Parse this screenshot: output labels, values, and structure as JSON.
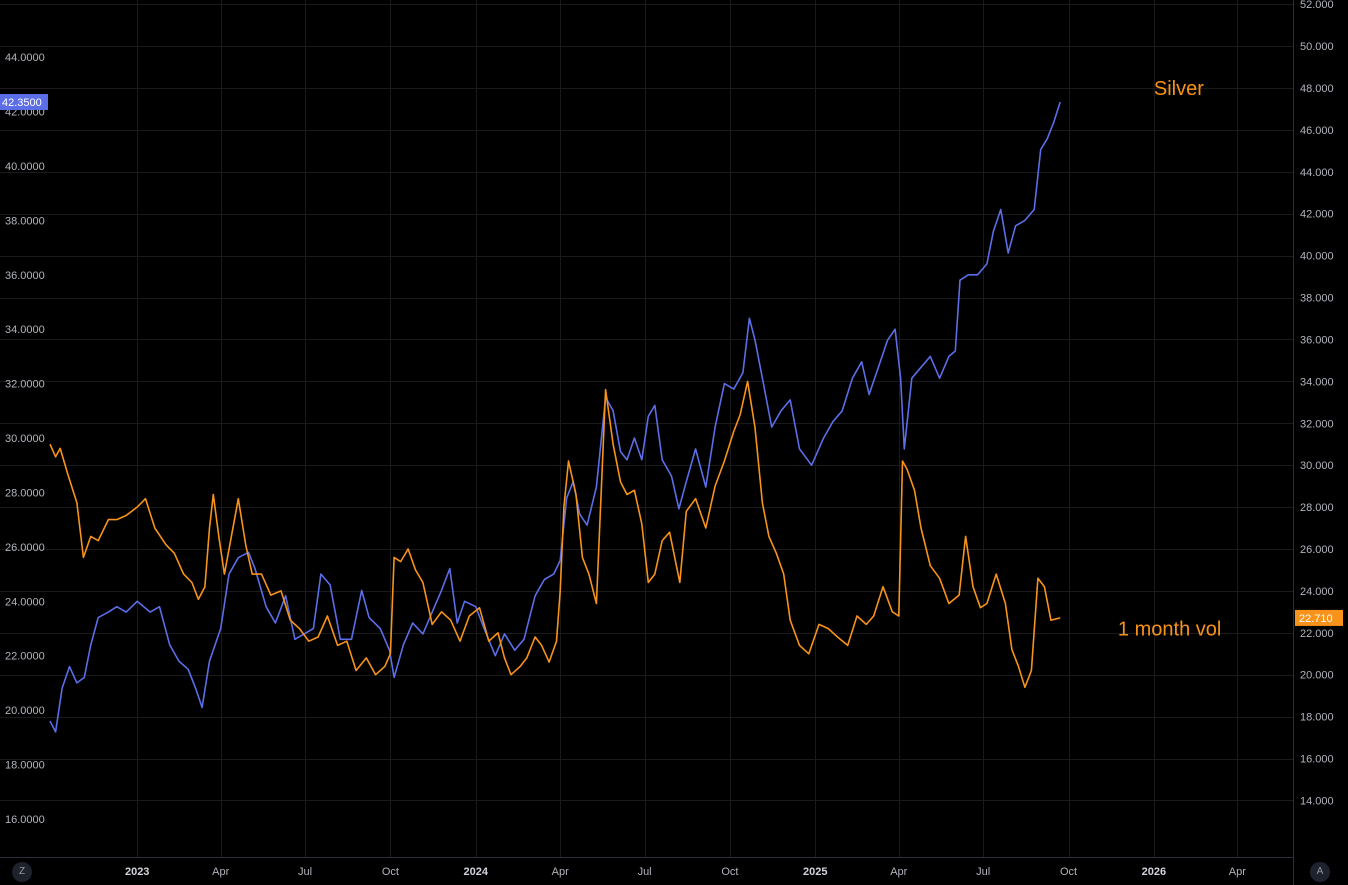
{
  "chart_data": {
    "type": "line",
    "left_axis": {
      "ticks": [
        "16.0000",
        "18.0000",
        "20.0000",
        "22.0000",
        "24.0000",
        "26.0000",
        "28.0000",
        "30.0000",
        "32.0000",
        "34.0000",
        "36.0000",
        "38.0000",
        "40.0000",
        "42.0000",
        "44.0000"
      ],
      "range": [
        14.6,
        46.1
      ]
    },
    "right_axis": {
      "ticks": [
        "14.000",
        "16.000",
        "18.000",
        "20.000",
        "22.000",
        "24.000",
        "26.000",
        "28.000",
        "30.000",
        "32.000",
        "34.000",
        "36.000",
        "38.000",
        "40.000",
        "42.000",
        "44.000",
        "46.000",
        "48.000",
        "50.000",
        "52.000"
      ],
      "range": [
        11.3,
        52.2
      ]
    },
    "x_axis": {
      "range": [
        "2022-09-29",
        "2026-05-31"
      ],
      "ticks": [
        {
          "date": "2023-01-01",
          "label": "2023",
          "year": true
        },
        {
          "date": "2023-04-01",
          "label": "Apr"
        },
        {
          "date": "2023-07-01",
          "label": "Jul"
        },
        {
          "date": "2023-10-01",
          "label": "Oct"
        },
        {
          "date": "2024-01-01",
          "label": "2024",
          "year": true
        },
        {
          "date": "2024-04-01",
          "label": "Apr"
        },
        {
          "date": "2024-07-01",
          "label": "Jul"
        },
        {
          "date": "2024-10-01",
          "label": "Oct"
        },
        {
          "date": "2025-01-01",
          "label": "2025",
          "year": true
        },
        {
          "date": "2025-04-01",
          "label": "Apr"
        },
        {
          "date": "2025-07-01",
          "label": "Jul"
        },
        {
          "date": "2025-10-01",
          "label": "Oct"
        },
        {
          "date": "2026-01-01",
          "label": "2026",
          "year": true
        },
        {
          "date": "2026-04-01",
          "label": "Apr"
        }
      ]
    },
    "grid": true,
    "series": [
      {
        "name": "Silver",
        "axis": "left",
        "color": "#5b6ee8",
        "last_value": "42.3500",
        "points": [
          [
            "2022-09-29",
            19.6
          ],
          [
            "2022-10-05",
            19.2
          ],
          [
            "2022-10-12",
            20.8
          ],
          [
            "2022-10-20",
            21.6
          ],
          [
            "2022-10-28",
            21.0
          ],
          [
            "2022-11-05",
            21.2
          ],
          [
            "2022-11-12",
            22.4
          ],
          [
            "2022-11-20",
            23.4
          ],
          [
            "2022-12-01",
            23.6
          ],
          [
            "2022-12-10",
            23.8
          ],
          [
            "2022-12-20",
            23.6
          ],
          [
            "2023-01-01",
            24.0
          ],
          [
            "2023-01-15",
            23.6
          ],
          [
            "2023-01-25",
            23.8
          ],
          [
            "2023-02-05",
            22.4
          ],
          [
            "2023-02-15",
            21.8
          ],
          [
            "2023-02-25",
            21.5
          ],
          [
            "2023-03-05",
            20.8
          ],
          [
            "2023-03-12",
            20.1
          ],
          [
            "2023-03-20",
            21.8
          ],
          [
            "2023-04-01",
            23.0
          ],
          [
            "2023-04-10",
            25.0
          ],
          [
            "2023-04-20",
            25.6
          ],
          [
            "2023-05-01",
            25.8
          ],
          [
            "2023-05-08",
            25.2
          ],
          [
            "2023-05-20",
            23.8
          ],
          [
            "2023-05-30",
            23.2
          ],
          [
            "2023-06-10",
            24.2
          ],
          [
            "2023-06-20",
            22.6
          ],
          [
            "2023-06-30",
            22.8
          ],
          [
            "2023-07-10",
            23.0
          ],
          [
            "2023-07-18",
            25.0
          ],
          [
            "2023-07-28",
            24.6
          ],
          [
            "2023-08-08",
            22.6
          ],
          [
            "2023-08-20",
            22.6
          ],
          [
            "2023-08-31",
            24.4
          ],
          [
            "2023-09-08",
            23.4
          ],
          [
            "2023-09-20",
            23.0
          ],
          [
            "2023-09-30",
            22.2
          ],
          [
            "2023-10-05",
            21.2
          ],
          [
            "2023-10-15",
            22.4
          ],
          [
            "2023-10-25",
            23.2
          ],
          [
            "2023-11-05",
            22.8
          ],
          [
            "2023-11-15",
            23.6
          ],
          [
            "2023-11-25",
            24.4
          ],
          [
            "2023-12-04",
            25.2
          ],
          [
            "2023-12-12",
            23.2
          ],
          [
            "2023-12-20",
            24.0
          ],
          [
            "2024-01-01",
            23.8
          ],
          [
            "2024-01-10",
            23.0
          ],
          [
            "2024-01-22",
            22.0
          ],
          [
            "2024-02-01",
            22.8
          ],
          [
            "2024-02-12",
            22.2
          ],
          [
            "2024-02-22",
            22.6
          ],
          [
            "2024-03-05",
            24.2
          ],
          [
            "2024-03-15",
            24.8
          ],
          [
            "2024-03-25",
            25.0
          ],
          [
            "2024-04-01",
            25.5
          ],
          [
            "2024-04-08",
            27.8
          ],
          [
            "2024-04-15",
            28.4
          ],
          [
            "2024-04-22",
            27.2
          ],
          [
            "2024-04-30",
            26.8
          ],
          [
            "2024-05-10",
            28.2
          ],
          [
            "2024-05-20",
            31.5
          ],
          [
            "2024-05-28",
            31.0
          ],
          [
            "2024-06-05",
            29.5
          ],
          [
            "2024-06-12",
            29.2
          ],
          [
            "2024-06-20",
            30.0
          ],
          [
            "2024-06-28",
            29.2
          ],
          [
            "2024-07-05",
            30.8
          ],
          [
            "2024-07-12",
            31.2
          ],
          [
            "2024-07-20",
            29.2
          ],
          [
            "2024-07-30",
            28.6
          ],
          [
            "2024-08-07",
            27.4
          ],
          [
            "2024-08-15",
            28.4
          ],
          [
            "2024-08-25",
            29.6
          ],
          [
            "2024-09-05",
            28.2
          ],
          [
            "2024-09-15",
            30.4
          ],
          [
            "2024-09-25",
            32.0
          ],
          [
            "2024-10-05",
            31.8
          ],
          [
            "2024-10-15",
            32.4
          ],
          [
            "2024-10-22",
            34.4
          ],
          [
            "2024-10-28",
            33.6
          ],
          [
            "2024-11-05",
            32.2
          ],
          [
            "2024-11-15",
            30.4
          ],
          [
            "2024-11-25",
            31.0
          ],
          [
            "2024-12-05",
            31.4
          ],
          [
            "2024-12-15",
            29.6
          ],
          [
            "2024-12-28",
            29.0
          ],
          [
            "2025-01-10",
            30.0
          ],
          [
            "2025-01-20",
            30.6
          ],
          [
            "2025-01-30",
            31.0
          ],
          [
            "2025-02-10",
            32.2
          ],
          [
            "2025-02-20",
            32.8
          ],
          [
            "2025-02-28",
            31.6
          ],
          [
            "2025-03-10",
            32.6
          ],
          [
            "2025-03-20",
            33.6
          ],
          [
            "2025-03-28",
            34.0
          ],
          [
            "2025-04-03",
            32.2
          ],
          [
            "2025-04-07",
            29.6
          ],
          [
            "2025-04-15",
            32.2
          ],
          [
            "2025-04-25",
            32.6
          ],
          [
            "2025-05-05",
            33.0
          ],
          [
            "2025-05-15",
            32.2
          ],
          [
            "2025-05-25",
            33.0
          ],
          [
            "2025-06-01",
            33.2
          ],
          [
            "2025-06-06",
            35.8
          ],
          [
            "2025-06-15",
            36.0
          ],
          [
            "2025-06-25",
            36.0
          ],
          [
            "2025-07-05",
            36.4
          ],
          [
            "2025-07-12",
            37.6
          ],
          [
            "2025-07-20",
            38.4
          ],
          [
            "2025-07-28",
            36.8
          ],
          [
            "2025-08-05",
            37.8
          ],
          [
            "2025-08-15",
            38.0
          ],
          [
            "2025-08-25",
            38.4
          ],
          [
            "2025-09-01",
            40.6
          ],
          [
            "2025-09-08",
            41.0
          ],
          [
            "2025-09-15",
            41.6
          ],
          [
            "2025-09-22",
            42.35
          ]
        ]
      },
      {
        "name": "1 month vol",
        "axis": "right",
        "color": "#f7931a",
        "last_value": "22.710",
        "points": [
          [
            "2022-09-29",
            31.0
          ],
          [
            "2022-10-05",
            30.4
          ],
          [
            "2022-10-10",
            30.8
          ],
          [
            "2022-10-18",
            29.6
          ],
          [
            "2022-10-28",
            28.2
          ],
          [
            "2022-11-04",
            25.6
          ],
          [
            "2022-11-12",
            26.6
          ],
          [
            "2022-11-20",
            26.4
          ],
          [
            "2022-12-01",
            27.4
          ],
          [
            "2022-12-10",
            27.4
          ],
          [
            "2022-12-20",
            27.6
          ],
          [
            "2023-01-01",
            28.0
          ],
          [
            "2023-01-10",
            28.4
          ],
          [
            "2023-01-20",
            27.0
          ],
          [
            "2023-02-01",
            26.2
          ],
          [
            "2023-02-10",
            25.8
          ],
          [
            "2023-02-20",
            24.8
          ],
          [
            "2023-03-01",
            24.4
          ],
          [
            "2023-03-08",
            23.6
          ],
          [
            "2023-03-15",
            24.2
          ],
          [
            "2023-03-20",
            27.0
          ],
          [
            "2023-03-24",
            28.6
          ],
          [
            "2023-03-30",
            26.6
          ],
          [
            "2023-04-05",
            24.8
          ],
          [
            "2023-04-15",
            27.2
          ],
          [
            "2023-04-20",
            28.4
          ],
          [
            "2023-04-28",
            26.2
          ],
          [
            "2023-05-05",
            24.8
          ],
          [
            "2023-05-15",
            24.8
          ],
          [
            "2023-05-25",
            23.8
          ],
          [
            "2023-06-05",
            24.0
          ],
          [
            "2023-06-15",
            22.6
          ],
          [
            "2023-06-25",
            22.2
          ],
          [
            "2023-07-05",
            21.6
          ],
          [
            "2023-07-15",
            21.8
          ],
          [
            "2023-07-25",
            22.8
          ],
          [
            "2023-08-05",
            21.4
          ],
          [
            "2023-08-15",
            21.6
          ],
          [
            "2023-08-25",
            20.2
          ],
          [
            "2023-09-05",
            20.8
          ],
          [
            "2023-09-15",
            20.0
          ],
          [
            "2023-09-25",
            20.4
          ],
          [
            "2023-10-01",
            21.0
          ],
          [
            "2023-10-05",
            25.6
          ],
          [
            "2023-10-12",
            25.4
          ],
          [
            "2023-10-20",
            26.0
          ],
          [
            "2023-10-28",
            25.0
          ],
          [
            "2023-11-05",
            24.4
          ],
          [
            "2023-11-15",
            22.4
          ],
          [
            "2023-11-25",
            23.0
          ],
          [
            "2023-12-05",
            22.6
          ],
          [
            "2023-12-15",
            21.6
          ],
          [
            "2023-12-25",
            22.8
          ],
          [
            "2024-01-05",
            23.2
          ],
          [
            "2024-01-15",
            21.6
          ],
          [
            "2024-01-25",
            22.0
          ],
          [
            "2024-02-01",
            20.8
          ],
          [
            "2024-02-08",
            20.0
          ],
          [
            "2024-02-18",
            20.4
          ],
          [
            "2024-02-25",
            20.8
          ],
          [
            "2024-03-05",
            21.8
          ],
          [
            "2024-03-12",
            21.4
          ],
          [
            "2024-03-20",
            20.6
          ],
          [
            "2024-03-28",
            21.6
          ],
          [
            "2024-04-01",
            24.0
          ],
          [
            "2024-04-05",
            28.0
          ],
          [
            "2024-04-10",
            30.2
          ],
          [
            "2024-04-18",
            28.6
          ],
          [
            "2024-04-25",
            25.6
          ],
          [
            "2024-05-02",
            24.8
          ],
          [
            "2024-05-10",
            23.4
          ],
          [
            "2024-05-20",
            33.6
          ],
          [
            "2024-05-28",
            31.0
          ],
          [
            "2024-06-05",
            29.2
          ],
          [
            "2024-06-12",
            28.6
          ],
          [
            "2024-06-20",
            28.8
          ],
          [
            "2024-06-28",
            27.2
          ],
          [
            "2024-07-05",
            24.4
          ],
          [
            "2024-07-12",
            24.8
          ],
          [
            "2024-07-20",
            26.4
          ],
          [
            "2024-07-28",
            26.8
          ],
          [
            "2024-08-08",
            24.4
          ],
          [
            "2024-08-15",
            27.8
          ],
          [
            "2024-08-25",
            28.4
          ],
          [
            "2024-09-05",
            27.0
          ],
          [
            "2024-09-15",
            29.0
          ],
          [
            "2024-09-25",
            30.2
          ],
          [
            "2024-10-05",
            31.6
          ],
          [
            "2024-10-12",
            32.4
          ],
          [
            "2024-10-20",
            34.0
          ],
          [
            "2024-10-28",
            31.8
          ],
          [
            "2024-11-05",
            28.2
          ],
          [
            "2024-11-12",
            26.6
          ],
          [
            "2024-11-20",
            25.8
          ],
          [
            "2024-11-28",
            24.8
          ],
          [
            "2024-12-05",
            22.6
          ],
          [
            "2024-12-15",
            21.4
          ],
          [
            "2024-12-25",
            21.0
          ],
          [
            "2025-01-05",
            22.4
          ],
          [
            "2025-01-15",
            22.2
          ],
          [
            "2025-01-25",
            21.8
          ],
          [
            "2025-02-05",
            21.4
          ],
          [
            "2025-02-15",
            22.8
          ],
          [
            "2025-02-25",
            22.4
          ],
          [
            "2025-03-05",
            22.8
          ],
          [
            "2025-03-15",
            24.2
          ],
          [
            "2025-03-25",
            23.0
          ],
          [
            "2025-04-01",
            22.8
          ],
          [
            "2025-04-05",
            30.2
          ],
          [
            "2025-04-10",
            29.8
          ],
          [
            "2025-04-18",
            28.8
          ],
          [
            "2025-04-25",
            27.0
          ],
          [
            "2025-05-05",
            25.2
          ],
          [
            "2025-05-15",
            24.6
          ],
          [
            "2025-05-25",
            23.4
          ],
          [
            "2025-06-05",
            23.8
          ],
          [
            "2025-06-12",
            26.6
          ],
          [
            "2025-06-20",
            24.2
          ],
          [
            "2025-06-28",
            23.2
          ],
          [
            "2025-07-05",
            23.4
          ],
          [
            "2025-07-15",
            24.8
          ],
          [
            "2025-07-25",
            23.4
          ],
          [
            "2025-08-01",
            21.2
          ],
          [
            "2025-08-08",
            20.4
          ],
          [
            "2025-08-15",
            19.4
          ],
          [
            "2025-08-22",
            20.2
          ],
          [
            "2025-08-29",
            24.6
          ],
          [
            "2025-09-05",
            24.2
          ],
          [
            "2025-09-12",
            22.6
          ],
          [
            "2025-09-22",
            22.71
          ]
        ]
      }
    ],
    "annotations": [
      {
        "text": "Silver",
        "color": "#f7931a",
        "date": "2026-01-28",
        "y_right": 48.0
      },
      {
        "text": "1 month vol",
        "color": "#f7931a",
        "date": "2026-01-18",
        "y_right": 22.2
      }
    ]
  },
  "corners": {
    "left": "Z",
    "right": "A"
  }
}
